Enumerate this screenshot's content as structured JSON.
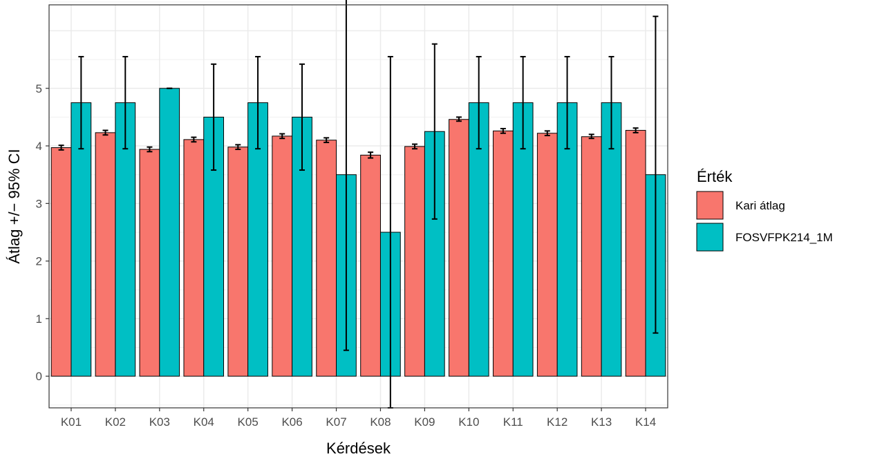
{
  "chart_data": {
    "type": "bar",
    "xlabel": "Kérdések",
    "ylabel": "Átlag +/− 95% CI",
    "ylim": [
      -0.55,
      6.45
    ],
    "yticks": [
      0,
      1,
      2,
      3,
      4,
      5
    ],
    "ytick_labels": [
      "0",
      "1",
      "2",
      "3",
      "4",
      "5"
    ],
    "grid": true,
    "legend": {
      "title": "Érték",
      "position": "right"
    },
    "categories": [
      "K01",
      "K02",
      "K03",
      "K04",
      "K05",
      "K06",
      "K07",
      "K08",
      "K09",
      "K10",
      "K11",
      "K12",
      "K13",
      "K14"
    ],
    "series": [
      {
        "name": "Kari átlag",
        "color": "#F8766D",
        "values": [
          3.97,
          4.23,
          3.94,
          4.11,
          3.98,
          4.17,
          4.1,
          3.84,
          3.99,
          4.46,
          4.26,
          4.22,
          4.16,
          4.27
        ],
        "ci_low": [
          3.93,
          4.19,
          3.9,
          4.07,
          3.94,
          4.13,
          4.06,
          3.79,
          3.95,
          4.43,
          4.22,
          4.18,
          4.13,
          4.23
        ],
        "ci_high": [
          4.01,
          4.27,
          3.98,
          4.15,
          4.02,
          4.21,
          4.14,
          3.89,
          4.03,
          4.5,
          4.3,
          4.26,
          4.2,
          4.31
        ]
      },
      {
        "name": "FOSVFPK214_1M",
        "color": "#00BFC4",
        "values": [
          4.75,
          4.75,
          5.0,
          4.5,
          4.75,
          4.5,
          3.5,
          2.5,
          4.25,
          4.75,
          4.75,
          4.75,
          4.75,
          3.5
        ],
        "ci_low": [
          3.95,
          3.95,
          5.0,
          3.58,
          3.95,
          3.58,
          0.45,
          -0.55,
          2.73,
          3.95,
          3.95,
          3.95,
          3.95,
          0.75
        ],
        "ci_high": [
          5.55,
          5.55,
          5.0,
          5.42,
          5.55,
          5.42,
          6.55,
          5.55,
          5.77,
          5.55,
          5.55,
          5.55,
          5.55,
          6.25
        ]
      }
    ]
  }
}
